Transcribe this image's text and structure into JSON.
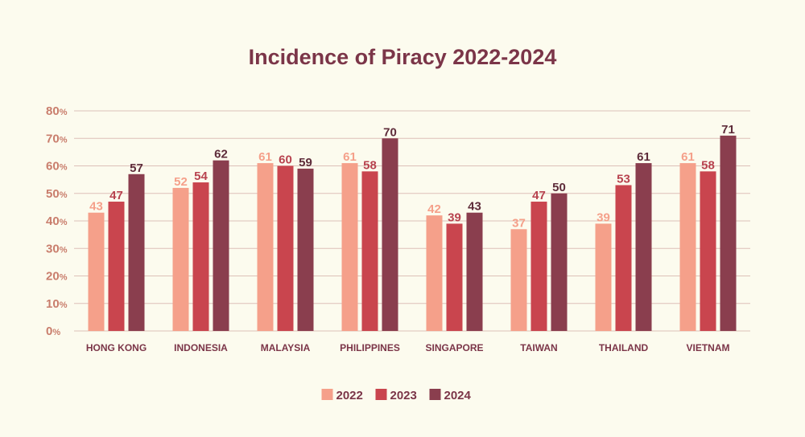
{
  "chart_data": {
    "type": "bar",
    "title": "Incidence of Piracy 2022-2024",
    "xlabel": "",
    "ylabel": "",
    "ylim": [
      0,
      80
    ],
    "y_ticks": [
      {
        "value": 0,
        "label": "0",
        "suffix": "%"
      },
      {
        "value": 10,
        "label": "10",
        "suffix": "%"
      },
      {
        "value": 20,
        "label": "20",
        "suffix": "%"
      },
      {
        "value": 30,
        "label": "30",
        "suffix": "%"
      },
      {
        "value": 40,
        "label": "40",
        "suffix": "%"
      },
      {
        "value": 50,
        "label": "50",
        "suffix": "%"
      },
      {
        "value": 60,
        "label": "60",
        "suffix": "%"
      },
      {
        "value": 70,
        "label": "70",
        "suffix": "%"
      },
      {
        "value": 80,
        "label": "80",
        "suffix": "%"
      }
    ],
    "grid": true,
    "legend_position": "bottom-center",
    "categories": [
      "HONG KONG",
      "INDONESIA",
      "MALAYSIA",
      "PHILIPPINES",
      "SINGAPORE",
      "TAIWAN",
      "THAILAND",
      "VIETNAM"
    ],
    "series": [
      {
        "name": "2022",
        "color": "#f5a08a",
        "label_color": "#f5a08a",
        "values": [
          43,
          52,
          61,
          61,
          42,
          37,
          39,
          61
        ]
      },
      {
        "name": "2023",
        "color": "#c9454e",
        "label_color": "#b8434f",
        "values": [
          47,
          54,
          60,
          58,
          39,
          47,
          53,
          58
        ]
      },
      {
        "name": "2024",
        "color": "#8a3e4e",
        "label_color": "#5e2c3a",
        "values": [
          57,
          62,
          59,
          70,
          43,
          50,
          61,
          71
        ]
      }
    ]
  }
}
